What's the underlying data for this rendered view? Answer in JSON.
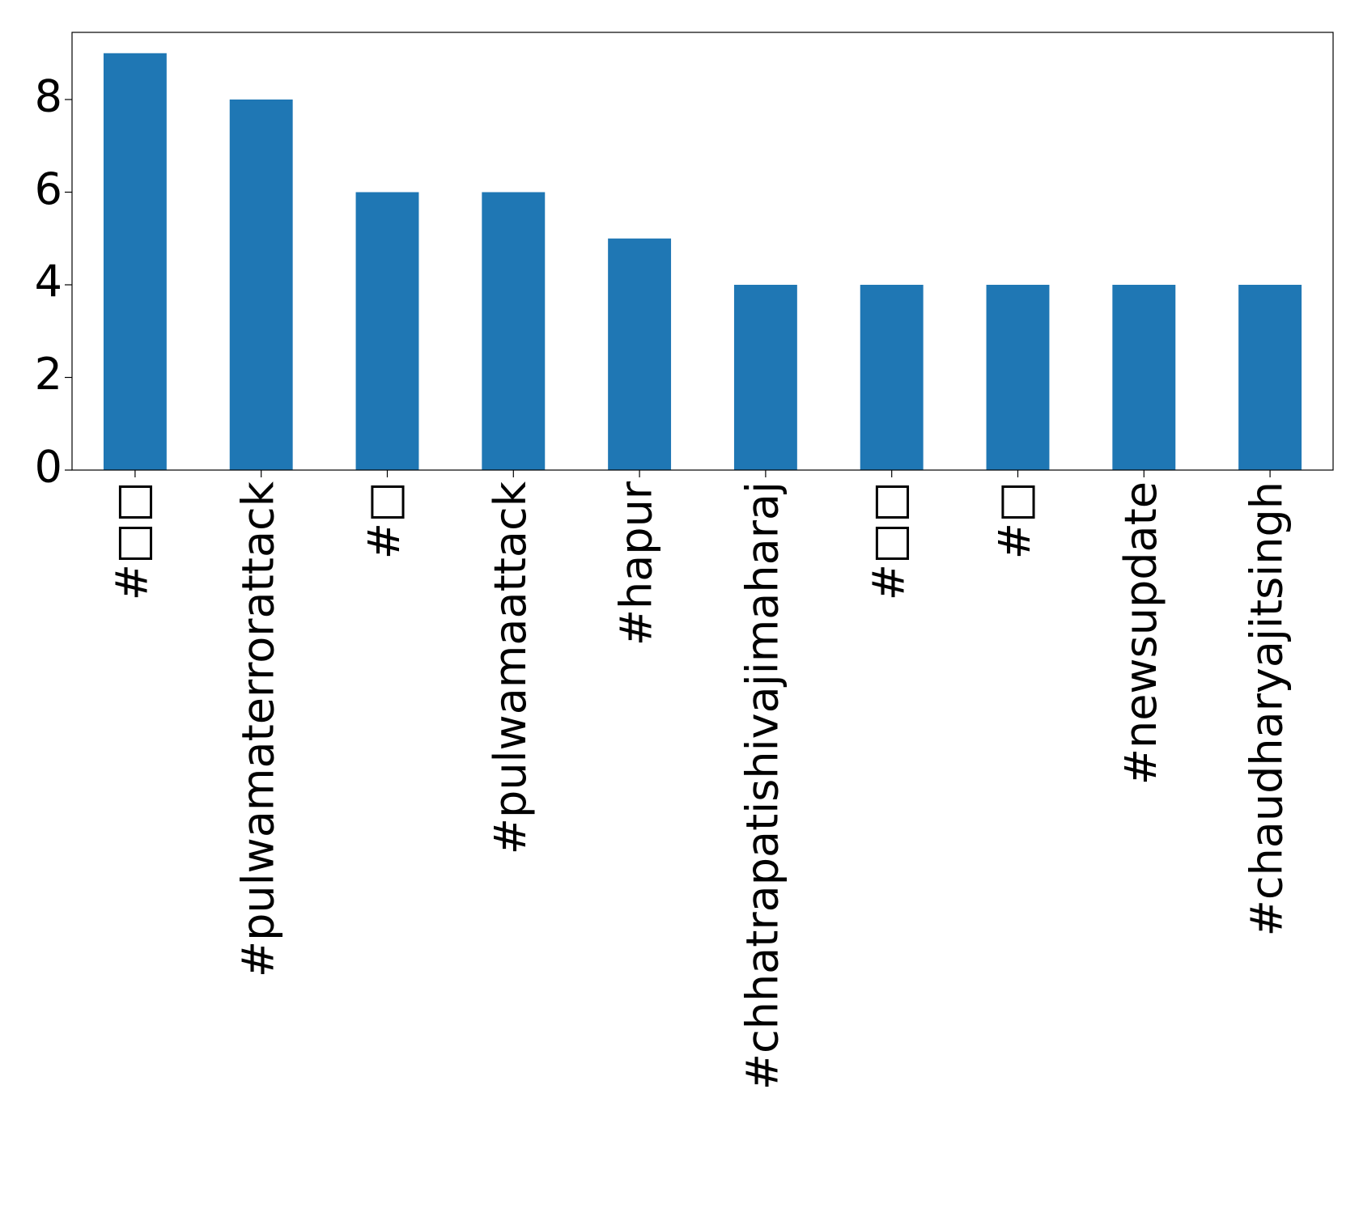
{
  "chart_data": {
    "type": "bar",
    "categories": [
      "#□□",
      "#pulwamaterrorattack",
      "#□",
      "#pulwamaattack",
      "#hapur",
      "#chhatrapatishivajimaharaj",
      "#□□",
      "#□",
      "#newsupdate",
      "#chaudharyajitsingh"
    ],
    "values": [
      9,
      8,
      6,
      6,
      5,
      4,
      4,
      4,
      4,
      4
    ],
    "color": "#1f77b4",
    "ylim": [
      0,
      9.45
    ],
    "yticks": [
      0,
      2,
      4,
      6,
      8
    ],
    "grid": false
  }
}
